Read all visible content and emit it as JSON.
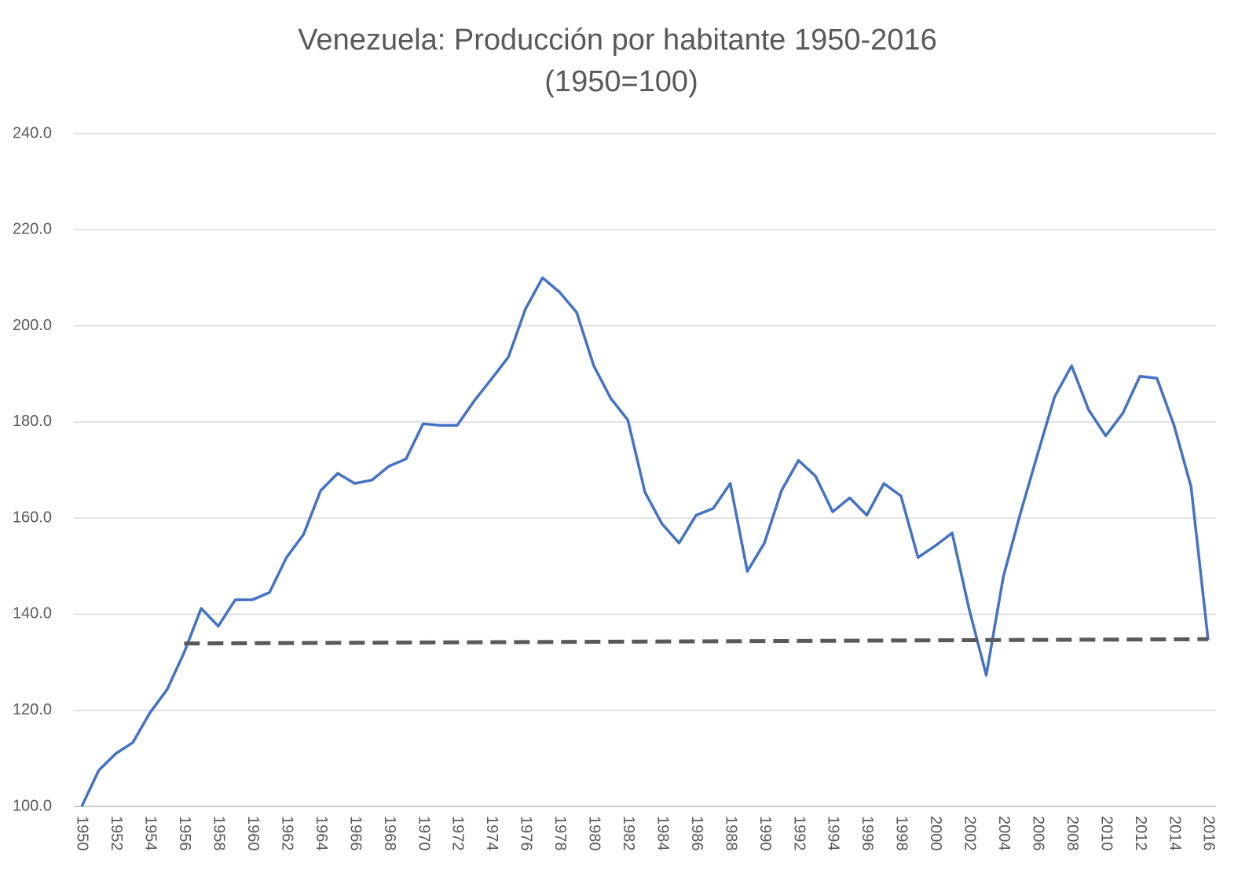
{
  "chart_data": {
    "type": "line",
    "title": "Venezuela: Producción por habitante 1950-2016",
    "subtitle": "(1950=100)",
    "x": [
      1950,
      1951,
      1952,
      1953,
      1954,
      1955,
      1956,
      1957,
      1958,
      1959,
      1960,
      1961,
      1962,
      1963,
      1964,
      1965,
      1966,
      1967,
      1968,
      1969,
      1970,
      1971,
      1972,
      1973,
      1974,
      1975,
      1976,
      1977,
      1978,
      1979,
      1980,
      1981,
      1982,
      1983,
      1984,
      1985,
      1986,
      1987,
      1988,
      1989,
      1990,
      1991,
      1992,
      1993,
      1994,
      1995,
      1996,
      1997,
      1998,
      1999,
      2000,
      2001,
      2002,
      2003,
      2004,
      2005,
      2006,
      2007,
      2008,
      2009,
      2010,
      2011,
      2012,
      2013,
      2014,
      2015,
      2016
    ],
    "xlim": [
      1950,
      2016
    ],
    "xticks": [
      1950,
      1952,
      1954,
      1956,
      1958,
      1960,
      1962,
      1964,
      1966,
      1968,
      1970,
      1972,
      1974,
      1976,
      1978,
      1980,
      1982,
      1984,
      1986,
      1988,
      1990,
      1992,
      1994,
      1996,
      1998,
      2000,
      2002,
      2004,
      2006,
      2008,
      2010,
      2012,
      2014,
      2016
    ],
    "ylim": [
      100,
      240
    ],
    "yticks": [
      {
        "value": 100,
        "label": "100.0"
      },
      {
        "value": 120,
        "label": "120.0"
      },
      {
        "value": 140,
        "label": "140.0"
      },
      {
        "value": 160,
        "label": "160.0"
      },
      {
        "value": 180,
        "label": "180.0"
      },
      {
        "value": 200,
        "label": "200.0"
      },
      {
        "value": 220,
        "label": "220.0"
      },
      {
        "value": 240,
        "label": "240.0"
      }
    ],
    "grid": true,
    "series": [
      {
        "color": "#4472c4",
        "dash": false,
        "values": [
          100,
          107.5,
          111,
          113.3,
          119.5,
          124.3,
          132,
          141.2,
          137.5,
          143,
          143,
          144.5,
          151.8,
          156.6,
          165.7,
          169.3,
          167.2,
          167.9,
          170.8,
          172.3,
          179.6,
          179.3,
          179.3,
          184.4,
          188.9,
          193.5,
          203.5,
          210,
          207,
          202.8,
          191.7,
          184.9,
          180.4,
          165.4,
          158.8,
          154.8,
          160.6,
          162,
          167.2,
          148.9,
          154.8,
          165.7,
          172,
          168.7,
          161.3,
          164.2,
          160.6,
          167.2,
          164.6,
          151.8,
          154.2,
          156.9,
          141,
          127.3,
          147.8,
          161,
          173.2,
          185.2,
          191.7,
          182.5,
          177.1,
          181.8,
          189.5,
          189.1,
          179.3,
          166.5,
          134.6
        ]
      },
      {
        "color": "#595959",
        "dash": true,
        "x": [
          1956,
          2016
        ],
        "values": [
          133.9,
          134.8
        ]
      }
    ]
  }
}
